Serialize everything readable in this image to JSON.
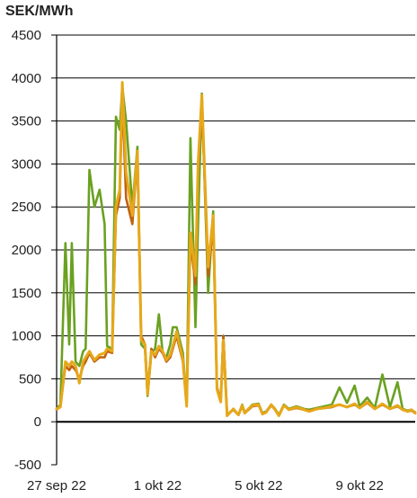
{
  "chart_data": {
    "type": "line",
    "ylabel": "SEK/MWh",
    "ylim": [
      -500,
      4500
    ],
    "yticks": [
      -500,
      0,
      500,
      1000,
      1500,
      2000,
      2500,
      3000,
      3500,
      4000,
      4500
    ],
    "xlim": [
      0,
      14.2
    ],
    "xticks": [
      {
        "x": 0,
        "label": "27 sep 22"
      },
      {
        "x": 4,
        "label": "1 okt 22"
      },
      {
        "x": 8,
        "label": "5 okt 22"
      },
      {
        "x": 12,
        "label": "9 okt 22"
      }
    ],
    "grid": true,
    "legend": "none",
    "series": [
      {
        "color": "#6aa121",
        "x": [
          0,
          0.15,
          0.35,
          0.5,
          0.6,
          0.75,
          0.9,
          1.05,
          1.15,
          1.3,
          1.5,
          1.7,
          1.9,
          2.0,
          2.2,
          2.35,
          2.5,
          2.6,
          2.75,
          3.0,
          3.2,
          3.35,
          3.5,
          3.6,
          3.75,
          3.9,
          4.05,
          4.2,
          4.35,
          4.5,
          4.6,
          4.75,
          5.0,
          5.15,
          5.3,
          5.5,
          5.6,
          5.75,
          6.0,
          6.2,
          6.35,
          6.5,
          6.6,
          6.75,
          7.0,
          7.2,
          7.35,
          7.45,
          7.6,
          7.75,
          8.0,
          8.15,
          8.3,
          8.5,
          8.65,
          8.8,
          9.0,
          9.2,
          9.5,
          9.8,
          10.0,
          10.3,
          10.6,
          10.9,
          11.2,
          11.5,
          11.8,
          12.0,
          12.3,
          12.6,
          12.9,
          13.2,
          13.5,
          13.7,
          13.9,
          14.05,
          14.2
        ],
        "y": [
          150,
          200,
          2080,
          900,
          2080,
          700,
          650,
          820,
          850,
          2930,
          2500,
          2700,
          2300,
          880,
          850,
          3550,
          3400,
          3900,
          3500,
          2500,
          3200,
          900,
          850,
          300,
          800,
          850,
          1250,
          800,
          750,
          900,
          1100,
          1100,
          800,
          200,
          3300,
          1100,
          2300,
          3820,
          1500,
          2450,
          400,
          250,
          1000,
          80,
          150,
          80,
          200,
          110,
          150,
          200,
          210,
          100,
          120,
          200,
          150,
          80,
          200,
          150,
          180,
          150,
          140,
          160,
          180,
          200,
          400,
          220,
          420,
          180,
          280,
          160,
          550,
          170,
          460,
          150,
          130,
          140,
          110
        ]
      },
      {
        "color": "#c06010",
        "x": [
          0,
          0.15,
          0.35,
          0.5,
          0.6,
          0.75,
          0.9,
          1.05,
          1.15,
          1.3,
          1.5,
          1.7,
          1.9,
          2.0,
          2.2,
          2.35,
          2.5,
          2.6,
          2.75,
          3.0,
          3.2,
          3.35,
          3.5,
          3.6,
          3.75,
          3.9,
          4.05,
          4.2,
          4.35,
          4.5,
          4.6,
          4.75,
          5.0,
          5.15,
          5.3,
          5.5,
          5.6,
          5.75,
          6.0,
          6.2,
          6.35,
          6.5,
          6.6,
          6.75,
          7.0,
          7.2,
          7.35,
          7.45,
          7.6,
          7.75,
          8.0,
          8.15,
          8.3,
          8.5,
          8.65,
          8.8,
          9.0,
          9.2,
          9.5,
          9.8,
          10.0,
          10.3,
          10.6,
          10.9,
          11.2,
          11.5,
          11.8,
          12.0,
          12.3,
          12.6,
          12.9,
          13.2,
          13.5,
          13.7,
          13.9,
          14.05,
          14.2
        ],
        "y": [
          140,
          180,
          650,
          600,
          650,
          600,
          500,
          650,
          700,
          800,
          700,
          750,
          750,
          820,
          800,
          2400,
          2600,
          3800,
          2600,
          2300,
          3100,
          1000,
          900,
          350,
          850,
          750,
          850,
          800,
          700,
          750,
          850,
          1000,
          700,
          200,
          2100,
          1600,
          2900,
          3700,
          1700,
          2300,
          400,
          250,
          1000,
          80,
          140,
          80,
          180,
          100,
          140,
          180,
          190,
          100,
          110,
          190,
          140,
          80,
          190,
          140,
          160,
          140,
          130,
          150,
          160,
          170,
          200,
          170,
          200,
          160,
          220,
          150,
          200,
          150,
          180,
          140,
          120,
          130,
          100
        ]
      },
      {
        "color": "#e6a81a",
        "x": [
          0,
          0.15,
          0.35,
          0.5,
          0.6,
          0.75,
          0.9,
          1.05,
          1.15,
          1.3,
          1.5,
          1.7,
          1.9,
          2.0,
          2.2,
          2.35,
          2.5,
          2.6,
          2.75,
          3.0,
          3.2,
          3.35,
          3.5,
          3.6,
          3.75,
          3.9,
          4.05,
          4.2,
          4.35,
          4.5,
          4.6,
          4.75,
          5.0,
          5.15,
          5.3,
          5.5,
          5.6,
          5.75,
          6.0,
          6.2,
          6.35,
          6.5,
          6.6,
          6.75,
          7.0,
          7.2,
          7.35,
          7.45,
          7.6,
          7.75,
          8.0,
          8.15,
          8.3,
          8.5,
          8.65,
          8.8,
          9.0,
          9.2,
          9.5,
          9.8,
          10.0,
          10.3,
          10.6,
          10.9,
          11.2,
          11.5,
          11.8,
          12.0,
          12.3,
          12.6,
          12.9,
          13.2,
          13.5,
          13.7,
          13.9,
          14.05,
          14.2
        ],
        "y": [
          150,
          170,
          700,
          650,
          700,
          650,
          450,
          700,
          750,
          820,
          720,
          780,
          800,
          850,
          820,
          2500,
          2700,
          3950,
          2900,
          2400,
          3150,
          950,
          900,
          320,
          820,
          780,
          880,
          820,
          720,
          780,
          880,
          1050,
          720,
          180,
          2200,
          1700,
          3000,
          3800,
          1800,
          2400,
          380,
          230,
          950,
          70,
          150,
          80,
          190,
          100,
          150,
          190,
          200,
          90,
          110,
          200,
          140,
          70,
          190,
          140,
          170,
          140,
          120,
          150,
          160,
          180,
          200,
          170,
          210,
          160,
          230,
          150,
          210,
          150,
          190,
          140,
          120,
          140,
          100
        ]
      }
    ]
  }
}
